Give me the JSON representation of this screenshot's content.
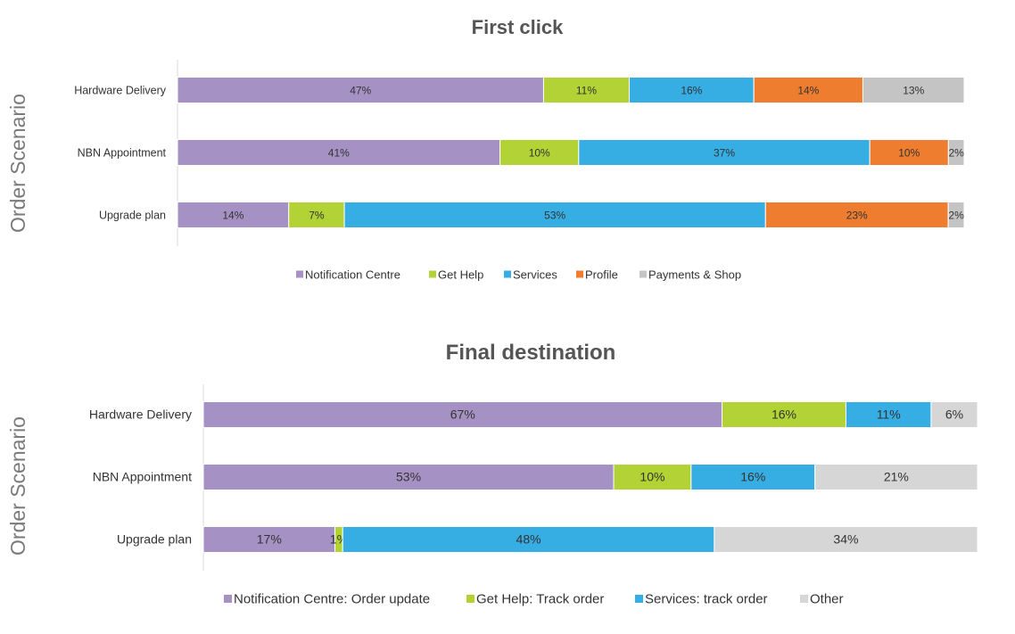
{
  "colors": {
    "Notification Centre": "#a691c4",
    "Get Help": "#b2d235",
    "Services": "#36ade3",
    "Profile": "#ef7d2f",
    "Payments & Shop": "#c4c4c4",
    "Other": "#d6d6d6"
  },
  "chart_data": [
    {
      "type": "bar",
      "orientation": "horizontal",
      "stacked": true,
      "title": "First click",
      "ylabel": "Order Scenario",
      "categories": [
        "Hardware Delivery",
        "NBN Appointment",
        "Upgrade plan"
      ],
      "series": [
        {
          "name": "Notification Centre",
          "color": "#a691c4",
          "values": [
            47,
            41,
            14
          ],
          "labels": [
            "47%",
            "41%",
            "14%"
          ]
        },
        {
          "name": "Get Help",
          "color": "#b2d235",
          "values": [
            11,
            10,
            7
          ],
          "labels": [
            "11%",
            "10%",
            "7%"
          ]
        },
        {
          "name": "Services",
          "color": "#36ade3",
          "values": [
            16,
            37,
            53
          ],
          "labels": [
            "16%",
            "37%",
            "53%"
          ]
        },
        {
          "name": "Profile",
          "color": "#ef7d2f",
          "values": [
            14,
            10,
            23
          ],
          "labels": [
            "14%",
            "10%",
            "23%"
          ]
        },
        {
          "name": "Payments & Shop",
          "color": "#c4c4c4",
          "values": [
            13,
            2,
            2
          ],
          "labels": [
            "13%",
            "2%",
            "2%"
          ]
        }
      ],
      "legend_position": "bottom"
    },
    {
      "type": "bar",
      "orientation": "horizontal",
      "stacked": true,
      "title": "Final destination",
      "ylabel": "Order Scenario",
      "categories": [
        "Hardware Delivery",
        "NBN Appointment",
        "Upgrade plan"
      ],
      "series": [
        {
          "name": "Notification Centre: Order update",
          "color": "#a691c4",
          "values": [
            67,
            53,
            17
          ],
          "labels": [
            "67%",
            "53%",
            "17%"
          ]
        },
        {
          "name": "Get Help: Track order",
          "color": "#b2d235",
          "values": [
            16,
            10,
            1
          ],
          "labels": [
            "16%",
            "10%",
            "1%"
          ]
        },
        {
          "name": "Services: track order",
          "color": "#36ade3",
          "values": [
            11,
            16,
            48
          ],
          "labels": [
            "11%",
            "16%",
            "48%"
          ]
        },
        {
          "name": "Other",
          "color": "#d6d6d6",
          "values": [
            6,
            21,
            34
          ],
          "labels": [
            "6%",
            "21%",
            "34%"
          ]
        }
      ],
      "legend_position": "bottom"
    }
  ]
}
